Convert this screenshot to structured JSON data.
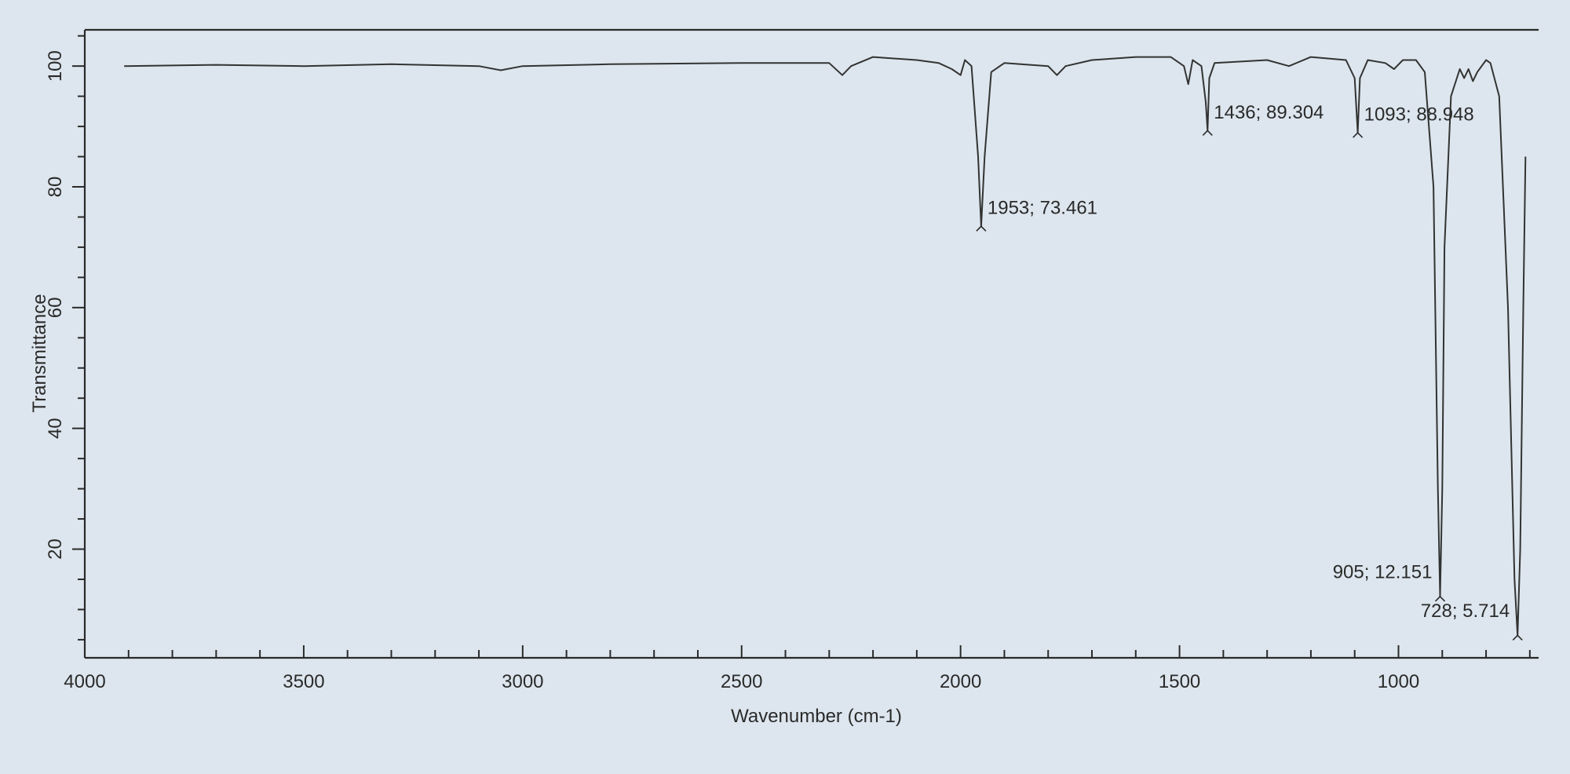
{
  "chart_data": {
    "type": "line",
    "xlabel": "Wavenumber (cm-1)",
    "ylabel": "Transmittance",
    "color": "#333333",
    "xlim": [
      4000,
      680
    ],
    "ylim": [
      2,
      106
    ],
    "xticks": [
      4000,
      3500,
      3000,
      2500,
      2000,
      1500,
      1000
    ],
    "xminorticks": [
      3900,
      3800,
      3700,
      3600,
      3400,
      3300,
      3200,
      3100,
      2900,
      2800,
      2700,
      2600,
      2400,
      2300,
      2200,
      2100,
      1900,
      1800,
      1700,
      1600,
      1400,
      1300,
      1200,
      1100,
      900,
      800,
      700
    ],
    "yticks": [
      20,
      40,
      60,
      80,
      100
    ],
    "yminorticks": [
      5,
      10,
      15,
      25,
      30,
      35,
      45,
      50,
      55,
      65,
      70,
      75,
      85,
      90,
      95,
      105
    ],
    "x": [
      3910,
      3700,
      3500,
      3300,
      3100,
      3050,
      3000,
      2800,
      2500,
      2300,
      2270,
      2250,
      2200,
      2100,
      2050,
      2020,
      2000,
      1990,
      1975,
      1960,
      1953,
      1945,
      1930,
      1900,
      1800,
      1780,
      1760,
      1700,
      1600,
      1520,
      1490,
      1480,
      1470,
      1450,
      1440,
      1436,
      1432,
      1420,
      1300,
      1250,
      1200,
      1120,
      1100,
      1093,
      1088,
      1070,
      1030,
      1010,
      990,
      960,
      940,
      920,
      910,
      905,
      900,
      895,
      880,
      860,
      850,
      840,
      830,
      820,
      800,
      790,
      770,
      750,
      735,
      728,
      722,
      715,
      710
    ],
    "values": [
      100,
      100.2,
      100,
      100.3,
      100,
      99.3,
      100,
      100.3,
      100.5,
      100.5,
      98.5,
      100,
      101.5,
      101,
      100.5,
      99.5,
      98.5,
      101,
      100,
      85,
      73.461,
      85,
      99,
      100.5,
      100,
      98.5,
      100,
      101,
      101.5,
      101.5,
      100,
      97,
      101,
      100,
      94,
      89.304,
      98,
      100.5,
      101,
      100,
      101.5,
      101,
      98,
      88.948,
      98,
      101,
      100.5,
      99.5,
      101,
      101,
      99,
      80,
      30,
      12.151,
      30,
      70,
      95,
      99.5,
      98,
      99.5,
      97.5,
      99,
      101,
      100.5,
      95,
      60,
      15,
      5.714,
      20,
      60,
      85
    ],
    "annotations": [
      {
        "x": 1953,
        "y": 73.461,
        "label": "1953; 73.461"
      },
      {
        "x": 1436,
        "y": 89.304,
        "label": "1436; 89.304"
      },
      {
        "x": 1093,
        "y": 88.948,
        "label": "1093; 88.948"
      },
      {
        "x": 905,
        "y": 12.151,
        "label": "905; 12.151"
      },
      {
        "x": 728,
        "y": 5.714,
        "label": "728; 5.714"
      }
    ]
  }
}
